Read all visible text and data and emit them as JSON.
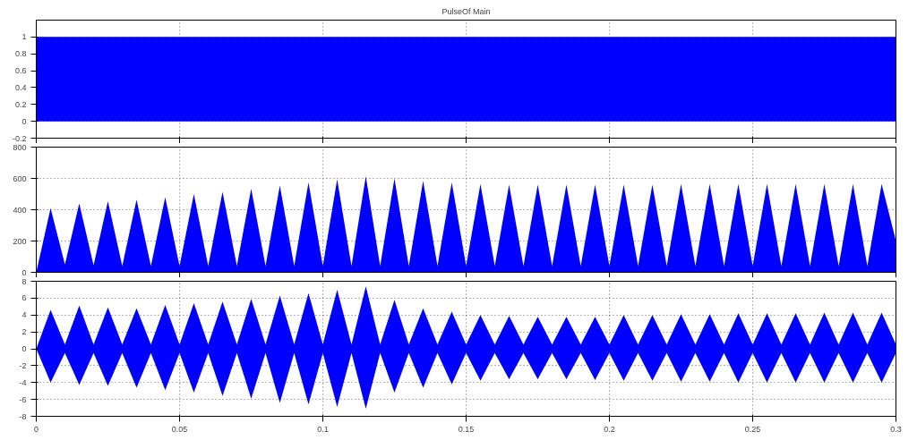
{
  "chart_data": [
    {
      "type": "area",
      "title": "PulseOf Main",
      "x": [
        0,
        0.3
      ],
      "series": [
        {
          "color": "#0000ff",
          "values": [
            1,
            1
          ]
        }
      ],
      "xlim": [
        0,
        0.3
      ],
      "xticks": [
        0,
        0.05,
        0.1,
        0.15,
        0.2,
        0.25,
        0.3
      ],
      "ylim": [
        -0.2,
        1.2
      ],
      "yticks": [
        -0.2,
        0,
        0.2,
        0.4,
        0.6,
        0.8,
        1
      ],
      "grid": true,
      "tick_labels": "y"
    },
    {
      "type": "area",
      "x": [
        0,
        0.005,
        0.01,
        0.015,
        0.02,
        0.025,
        0.03,
        0.035,
        0.04,
        0.045,
        0.05,
        0.055,
        0.06,
        0.065,
        0.07,
        0.075,
        0.08,
        0.085,
        0.09,
        0.095,
        0.1,
        0.105,
        0.11,
        0.115,
        0.12,
        0.125,
        0.13,
        0.135,
        0.14,
        0.145,
        0.15,
        0.155,
        0.16,
        0.165,
        0.17,
        0.175,
        0.18,
        0.185,
        0.19,
        0.195,
        0.2,
        0.205,
        0.21,
        0.215,
        0.22,
        0.225,
        0.23,
        0.235,
        0.24,
        0.245,
        0.25,
        0.255,
        0.26,
        0.265,
        0.27,
        0.275,
        0.28,
        0.285,
        0.29,
        0.295,
        0.3
      ],
      "series": [
        {
          "color": "#0000ff",
          "values": [
            0,
            410,
            50,
            440,
            45,
            455,
            40,
            465,
            40,
            480,
            40,
            500,
            40,
            515,
            40,
            535,
            40,
            555,
            40,
            575,
            40,
            595,
            40,
            615,
            40,
            600,
            40,
            585,
            40,
            575,
            40,
            565,
            40,
            560,
            40,
            560,
            40,
            560,
            40,
            560,
            40,
            560,
            40,
            560,
            40,
            565,
            40,
            565,
            40,
            565,
            40,
            565,
            40,
            565,
            40,
            565,
            40,
            565,
            40,
            565,
            200
          ]
        }
      ],
      "xlim": [
        0,
        0.3
      ],
      "xticks": [
        0,
        0.05,
        0.1,
        0.15,
        0.2,
        0.25,
        0.3
      ],
      "ylim": [
        0,
        800
      ],
      "yticks": [
        0,
        200,
        400,
        600,
        800
      ],
      "grid": true,
      "tick_labels": "y"
    },
    {
      "type": "area",
      "x": [
        0,
        0.005,
        0.01,
        0.015,
        0.02,
        0.025,
        0.03,
        0.035,
        0.04,
        0.045,
        0.05,
        0.055,
        0.06,
        0.065,
        0.07,
        0.075,
        0.08,
        0.085,
        0.09,
        0.095,
        0.1,
        0.105,
        0.11,
        0.115,
        0.12,
        0.125,
        0.13,
        0.135,
        0.14,
        0.145,
        0.15,
        0.155,
        0.16,
        0.165,
        0.17,
        0.175,
        0.18,
        0.185,
        0.19,
        0.195,
        0.2,
        0.205,
        0.21,
        0.215,
        0.22,
        0.225,
        0.23,
        0.235,
        0.24,
        0.245,
        0.25,
        0.255,
        0.26,
        0.265,
        0.27,
        0.275,
        0.28,
        0.285,
        0.29,
        0.295,
        0.3
      ],
      "series": [
        {
          "color": "#0000ff",
          "values": [
            0,
            4.6,
            0.5,
            5.1,
            0.5,
            4.9,
            0.5,
            4.8,
            0.5,
            5.2,
            0.5,
            5.4,
            0.5,
            5.6,
            0.5,
            5.9,
            0.5,
            6.3,
            0.5,
            6.6,
            0.5,
            7.0,
            0.5,
            7.4,
            0.5,
            5.8,
            0.5,
            4.8,
            0.5,
            4.4,
            0.5,
            4.0,
            0.5,
            3.9,
            0.5,
            3.8,
            0.5,
            3.8,
            0.5,
            3.8,
            0.5,
            4.0,
            0.5,
            4.0,
            0.5,
            4.1,
            0.5,
            4.1,
            0.5,
            4.2,
            0.5,
            4.2,
            0.5,
            4.2,
            0.5,
            4.3,
            0.5,
            4.3,
            0.5,
            4.3,
            0.5
          ]
        },
        {
          "color": "#0000fe",
          "values": [
            0,
            -4.0,
            -0.5,
            -4.3,
            -0.5,
            -4.4,
            -0.5,
            -4.6,
            -0.5,
            -4.9,
            -0.5,
            -5.2,
            -0.5,
            -5.6,
            -0.5,
            -5.9,
            -0.5,
            -6.4,
            -0.5,
            -6.6,
            -0.5,
            -6.9,
            -0.5,
            -7.1,
            -0.5,
            -5.2,
            -0.5,
            -4.6,
            -0.5,
            -4.2,
            -0.5,
            -3.8,
            -0.5,
            -3.6,
            -0.5,
            -3.6,
            -0.5,
            -3.6,
            -0.5,
            -3.7,
            -0.5,
            -3.8,
            -0.5,
            -3.8,
            -0.5,
            -3.9,
            -0.5,
            -3.9,
            -0.5,
            -4.0,
            -0.5,
            -4.0,
            -0.5,
            -4.0,
            -0.5,
            -4.0,
            -0.5,
            -4.0,
            -0.5,
            -4.0,
            -0.5
          ]
        }
      ],
      "xlim": [
        0,
        0.3
      ],
      "xticks": [
        0,
        0.05,
        0.1,
        0.15,
        0.2,
        0.25,
        0.3
      ],
      "ylim": [
        -8,
        8
      ],
      "yticks": [
        -8,
        -6,
        -4,
        -2,
        0,
        2,
        4,
        6,
        8
      ],
      "grid": true
    }
  ]
}
